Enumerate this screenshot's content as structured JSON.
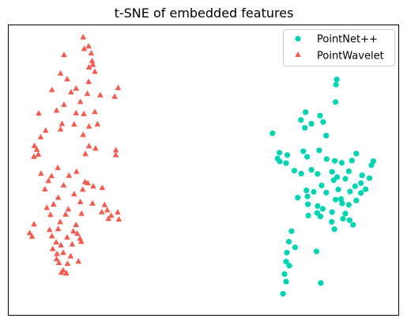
{
  "chart_data": {
    "type": "scatter",
    "title": "t-SNE of embedded features",
    "xlabel": "",
    "ylabel": "",
    "xlim": [
      0,
      100
    ],
    "ylim": [
      0,
      100
    ],
    "axes_ticks_visible": false,
    "grid": false,
    "legend_position": "top-right",
    "series": [
      {
        "name": "PointNet++",
        "marker": "circle",
        "color": "#00d4b2",
        "points": [
          [
            84.2,
            81.3
          ],
          [
            84.0,
            79.5
          ],
          [
            83.9,
            73.5
          ],
          [
            76.2,
            70.0
          ],
          [
            75.0,
            67.3
          ],
          [
            79.9,
            68.8
          ],
          [
            80.7,
            66.6
          ],
          [
            77.7,
            66.0
          ],
          [
            76.0,
            64.6
          ],
          [
            67.7,
            62.7
          ],
          [
            81.5,
            61.9
          ],
          [
            69.5,
            56.0
          ],
          [
            69.0,
            54.0
          ],
          [
            69.6,
            53.0
          ],
          [
            71.5,
            55.2
          ],
          [
            75.6,
            56.5
          ],
          [
            79.7,
            56.8
          ],
          [
            76.6,
            54.6
          ],
          [
            81.6,
            53.8
          ],
          [
            83.7,
            53.2
          ],
          [
            85.5,
            52.5
          ],
          [
            88.1,
            53.3
          ],
          [
            93.6,
            53.1
          ],
          [
            93.1,
            51.7
          ],
          [
            71.2,
            52.4
          ],
          [
            73.3,
            49.8
          ],
          [
            75.1,
            48.8
          ],
          [
            77.7,
            50.1
          ],
          [
            79.3,
            48.7
          ],
          [
            83.0,
            49.4
          ],
          [
            87.3,
            49.6
          ],
          [
            84.3,
            47.6
          ],
          [
            86.4,
            47.0
          ],
          [
            90.7,
            48.2
          ],
          [
            92.6,
            47.2
          ],
          [
            90.4,
            45.5
          ],
          [
            88.9,
            44.4
          ],
          [
            80.3,
            44.7
          ],
          [
            84.6,
            43.3
          ],
          [
            76.4,
            43.0
          ],
          [
            78.3,
            42.5
          ],
          [
            81.5,
            42.2
          ],
          [
            87.6,
            42.6
          ],
          [
            90.4,
            42.1
          ],
          [
            91.6,
            43.4
          ],
          [
            74.2,
            40.5
          ],
          [
            76.7,
            40.9
          ],
          [
            83.9,
            39.8
          ],
          [
            85.3,
            40.0
          ],
          [
            89.2,
            39.5
          ],
          [
            76.8,
            38.2
          ],
          [
            79.3,
            37.6
          ],
          [
            80.6,
            36.6
          ],
          [
            85.6,
            38.5
          ],
          [
            87.3,
            38.0
          ],
          [
            79.2,
            35.2
          ],
          [
            76.9,
            34.3
          ],
          [
            80.0,
            34.0
          ],
          [
            83.0,
            35.5
          ],
          [
            86.4,
            35.0
          ],
          [
            82.9,
            32.1
          ],
          [
            85.8,
            33.2
          ],
          [
            87.5,
            32.7
          ],
          [
            88.4,
            31.1
          ],
          [
            83.6,
            29.6
          ],
          [
            72.6,
            28.9
          ],
          [
            71.9,
            25.3
          ],
          [
            73.5,
            23.3
          ],
          [
            71.4,
            21.5
          ],
          [
            79.0,
            21.9
          ],
          [
            71.2,
            18.4
          ],
          [
            72.0,
            17.0
          ],
          [
            70.8,
            14.1
          ],
          [
            71.2,
            11.5
          ],
          [
            80.1,
            11.0
          ],
          [
            70.4,
            7.3
          ],
          [
            89.2,
            55.7
          ],
          [
            83.4,
            46.5
          ]
        ]
      },
      {
        "name": "PointWavelet",
        "marker": "triangle",
        "color": "#f55a4e",
        "points": [
          [
            19.1,
            96.0
          ],
          [
            20.5,
            92.9
          ],
          [
            21.2,
            90.5
          ],
          [
            14.2,
            89.9
          ],
          [
            21.4,
            87.8
          ],
          [
            21.6,
            86.5
          ],
          [
            20.6,
            85.6
          ],
          [
            22.1,
            84.1
          ],
          [
            13.3,
            83.5
          ],
          [
            15.0,
            81.5
          ],
          [
            17.3,
            78.3
          ],
          [
            20.5,
            80.6
          ],
          [
            20.2,
            76.5
          ],
          [
            18.4,
            73.7
          ],
          [
            28.1,
            78.5
          ],
          [
            11.1,
            77.8
          ],
          [
            27.2,
            75.5
          ],
          [
            23.5,
            76.0
          ],
          [
            14.2,
            72.7
          ],
          [
            17.3,
            69.8
          ],
          [
            22.1,
            70.2
          ],
          [
            19.3,
            69.5
          ],
          [
            12.3,
            70.7
          ],
          [
            7.7,
            69.7
          ],
          [
            13.7,
            66.1
          ],
          [
            16.8,
            65.9
          ],
          [
            13.3,
            64.2
          ],
          [
            9.5,
            63.8
          ],
          [
            20.6,
            65.2
          ],
          [
            19.1,
            62.3
          ],
          [
            6.6,
            58.5
          ],
          [
            7.2,
            57.2
          ],
          [
            7.6,
            55.5
          ],
          [
            6.5,
            54.8
          ],
          [
            20.6,
            58.4
          ],
          [
            22.3,
            57.6
          ],
          [
            19.7,
            55.7
          ],
          [
            27.5,
            55.3
          ],
          [
            12.6,
            50.9
          ],
          [
            8.3,
            48.9
          ],
          [
            11.0,
            48.1
          ],
          [
            17.4,
            49.6
          ],
          [
            15.5,
            48.2
          ],
          [
            19.6,
            46.0
          ],
          [
            10.2,
            46.4
          ],
          [
            20.3,
            45.6
          ],
          [
            14.1,
            44.9
          ],
          [
            21.7,
            44.5
          ],
          [
            9.3,
            43.5
          ],
          [
            19.0,
            43.4
          ],
          [
            24.0,
            44.0
          ],
          [
            16.8,
            41.8
          ],
          [
            12.7,
            40.6
          ],
          [
            11.5,
            38.3
          ],
          [
            18.4,
            39.1
          ],
          [
            21.5,
            38.6
          ],
          [
            24.6,
            38.1
          ],
          [
            9.8,
            37.1
          ],
          [
            15.3,
            36.6
          ],
          [
            23.9,
            35.6
          ],
          [
            25.3,
            36.3
          ],
          [
            28.0,
            35.5
          ],
          [
            26.3,
            34.4
          ],
          [
            25.6,
            33.3
          ],
          [
            28.3,
            33.1
          ],
          [
            10.7,
            34.7
          ],
          [
            14.6,
            34.8
          ],
          [
            18.7,
            35.1
          ],
          [
            13.2,
            32.2
          ],
          [
            17.3,
            31.2
          ],
          [
            6.5,
            31.4
          ],
          [
            12.7,
            29.8
          ],
          [
            16.6,
            29.0
          ],
          [
            5.4,
            28.4
          ],
          [
            6.0,
            27.2
          ],
          [
            10.5,
            29.5
          ],
          [
            11.1,
            27.3
          ],
          [
            15.0,
            26.9
          ],
          [
            17.6,
            28.2
          ],
          [
            18.3,
            26.5
          ],
          [
            12.2,
            25.2
          ],
          [
            13.4,
            24.2
          ],
          [
            16.3,
            24.5
          ],
          [
            18.6,
            25.4
          ],
          [
            11.3,
            22.9
          ],
          [
            12.4,
            21.2
          ],
          [
            14.0,
            21.6
          ],
          [
            15.9,
            20.4
          ],
          [
            12.9,
            18.1
          ],
          [
            15.1,
            17.8
          ],
          [
            14.0,
            15.5
          ],
          [
            13.5,
            14.7
          ],
          [
            14.8,
            14.5
          ],
          [
            12.3,
            19.4
          ],
          [
            17.9,
            18.6
          ],
          [
            19.4,
            92.0
          ],
          [
            8.2,
            61.5
          ],
          [
            27.5,
            57.0
          ],
          [
            22.8,
            66.0
          ],
          [
            16.0,
            77.0
          ]
        ]
      }
    ]
  }
}
